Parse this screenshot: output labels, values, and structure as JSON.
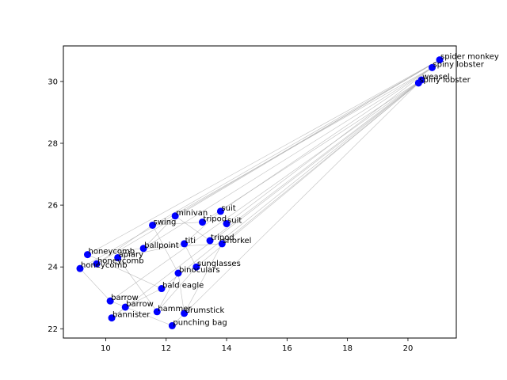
{
  "chart_data": {
    "type": "scatter",
    "title": "",
    "xlabel": "",
    "ylabel": "",
    "xlim": [
      8.6,
      21.6
    ],
    "ylim": [
      21.7,
      31.15
    ],
    "xticks": [
      10,
      12,
      14,
      16,
      18,
      20
    ],
    "yticks": [
      22,
      24,
      26,
      28,
      30
    ],
    "grid": false,
    "marker_color": "#0000ff",
    "edge_color": "#aaaaaa",
    "points": [
      {
        "label": "spider monkey",
        "x": 21.05,
        "y": 30.7
      },
      {
        "label": "spiny lobster",
        "x": 20.8,
        "y": 30.45
      },
      {
        "label": "weasel",
        "x": 20.45,
        "y": 30.05
      },
      {
        "label": "spiny lobster",
        "x": 20.35,
        "y": 29.95
      },
      {
        "label": "suit",
        "x": 13.8,
        "y": 25.8
      },
      {
        "label": "minivan",
        "x": 12.3,
        "y": 25.65
      },
      {
        "label": "tripod",
        "x": 13.2,
        "y": 25.45
      },
      {
        "label": "suit",
        "x": 14.0,
        "y": 25.4
      },
      {
        "label": "swing",
        "x": 11.55,
        "y": 25.35
      },
      {
        "label": "tripod",
        "x": 13.45,
        "y": 24.85
      },
      {
        "label": "titi",
        "x": 12.6,
        "y": 24.75
      },
      {
        "label": "snorkel",
        "x": 13.85,
        "y": 24.75
      },
      {
        "label": "ballpoint",
        "x": 11.25,
        "y": 24.6
      },
      {
        "label": "honeycomb",
        "x": 9.4,
        "y": 24.4
      },
      {
        "label": "apiary",
        "x": 10.4,
        "y": 24.3
      },
      {
        "label": "honeycomb",
        "x": 9.7,
        "y": 24.1
      },
      {
        "label": "sunglasses",
        "x": 13.0,
        "y": 24.0
      },
      {
        "label": "honeycomb",
        "x": 9.15,
        "y": 23.95
      },
      {
        "label": "binoculars",
        "x": 12.4,
        "y": 23.8
      },
      {
        "label": "bald eagle",
        "x": 11.85,
        "y": 23.3
      },
      {
        "label": "barrow",
        "x": 10.15,
        "y": 22.9
      },
      {
        "label": "barrow",
        "x": 10.65,
        "y": 22.7
      },
      {
        "label": "hammer",
        "x": 11.7,
        "y": 22.55
      },
      {
        "label": "drumstick",
        "x": 12.6,
        "y": 22.5
      },
      {
        "label": "bannister",
        "x": 10.2,
        "y": 22.35
      },
      {
        "label": "punching bag",
        "x": 12.2,
        "y": 22.1
      }
    ],
    "edges": [
      [
        0,
        13
      ],
      [
        0,
        15
      ],
      [
        0,
        8
      ],
      [
        0,
        5
      ],
      [
        1,
        17
      ],
      [
        1,
        12
      ],
      [
        1,
        7
      ],
      [
        1,
        4
      ],
      [
        2,
        20
      ],
      [
        2,
        19
      ],
      [
        2,
        9
      ],
      [
        2,
        6
      ],
      [
        3,
        24
      ],
      [
        3,
        25
      ],
      [
        3,
        16
      ],
      [
        3,
        11
      ],
      [
        13,
        12
      ],
      [
        13,
        19
      ],
      [
        14,
        10
      ],
      [
        14,
        22
      ],
      [
        15,
        8
      ],
      [
        17,
        20
      ],
      [
        12,
        5
      ],
      [
        12,
        11
      ],
      [
        8,
        6
      ],
      [
        8,
        18
      ],
      [
        10,
        4
      ],
      [
        10,
        16
      ],
      [
        9,
        5
      ],
      [
        18,
        22
      ],
      [
        18,
        23
      ],
      [
        19,
        21
      ],
      [
        21,
        24
      ],
      [
        20,
        25
      ],
      [
        22,
        16
      ],
      [
        23,
        11
      ]
    ]
  }
}
